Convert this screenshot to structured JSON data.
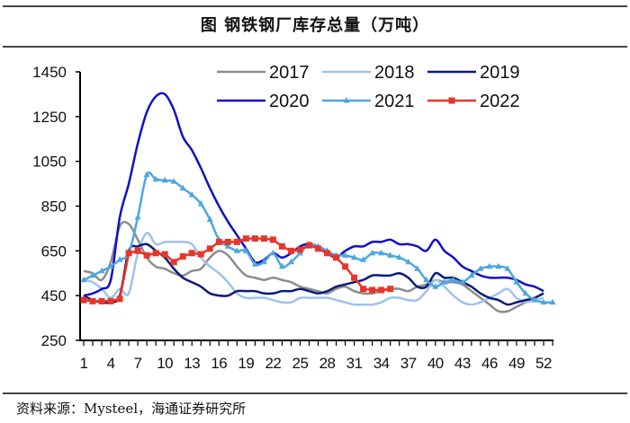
{
  "title": "图  钢铁钢厂库存总量（万吨）",
  "source": "资料来源：Mysteel，海通证券研究所",
  "chart_data": {
    "type": "line",
    "title": "图  钢铁钢厂库存总量（万吨）",
    "xlabel": "",
    "ylabel": "",
    "ylim": [
      250,
      1450
    ],
    "yticks": [
      250,
      450,
      650,
      850,
      1050,
      1250,
      1450
    ],
    "xlim": [
      1,
      53
    ],
    "xticks": [
      1,
      4,
      7,
      10,
      13,
      16,
      19,
      22,
      25,
      28,
      31,
      34,
      37,
      40,
      43,
      46,
      49,
      52
    ],
    "grid": false,
    "legend": "top-right",
    "series": [
      {
        "name": "2017",
        "color": "#8c8c8c",
        "marker": "none",
        "values": [
          560,
          550,
          520,
          600,
          760,
          770,
          700,
          620,
          580,
          570,
          550,
          540,
          560,
          570,
          620,
          650,
          630,
          580,
          540,
          530,
          520,
          530,
          520,
          510,
          490,
          480,
          470,
          460,
          480,
          490,
          470,
          460,
          460,
          470,
          480,
          480,
          470,
          490,
          500,
          520,
          510,
          510,
          500,
          470,
          440,
          410,
          380,
          380,
          400,
          420,
          440,
          460
        ]
      },
      {
        "name": "2018",
        "color": "#9dc3ec",
        "marker": "none",
        "values": [
          520,
          510,
          480,
          440,
          480,
          460,
          640,
          730,
          680,
          690,
          690,
          690,
          680,
          620,
          580,
          550,
          510,
          460,
          440,
          440,
          440,
          430,
          420,
          420,
          440,
          440,
          440,
          440,
          430,
          420,
          410,
          410,
          410,
          420,
          440,
          440,
          430,
          430,
          470,
          520,
          490,
          450,
          420,
          410,
          420,
          440,
          460,
          480,
          440,
          420,
          430,
          440
        ]
      },
      {
        "name": "2019",
        "color": "#0a1a7a",
        "marker": "none",
        "values": [
          450,
          430,
          420,
          420,
          450,
          650,
          670,
          680,
          650,
          620,
          570,
          530,
          510,
          490,
          460,
          450,
          450,
          470,
          470,
          470,
          460,
          460,
          470,
          470,
          480,
          470,
          460,
          470,
          490,
          500,
          510,
          520,
          540,
          540,
          540,
          550,
          530,
          490,
          490,
          550,
          530,
          530,
          510,
          490,
          460,
          440,
          430,
          410,
          420,
          430,
          440,
          460
        ]
      },
      {
        "name": "2020",
        "color": "#1010c8",
        "marker": "none",
        "values": [
          450,
          460,
          480,
          520,
          800,
          950,
          1130,
          1270,
          1340,
          1350,
          1280,
          1160,
          1100,
          1020,
          930,
          850,
          780,
          720,
          660,
          600,
          610,
          640,
          620,
          640,
          670,
          680,
          660,
          640,
          620,
          650,
          670,
          670,
          690,
          690,
          700,
          680,
          680,
          670,
          650,
          700,
          650,
          620,
          580,
          560,
          540,
          530,
          530,
          530,
          520,
          500,
          490,
          470
        ]
      },
      {
        "name": "2021",
        "color": "#4da6e0",
        "marker": "triangle",
        "values": [
          520,
          540,
          560,
          580,
          610,
          640,
          800,
          990,
          970,
          965,
          960,
          930,
          900,
          860,
          790,
          700,
          670,
          650,
          650,
          590,
          600,
          640,
          580,
          600,
          640,
          680,
          670,
          650,
          630,
          630,
          620,
          610,
          640,
          640,
          630,
          620,
          600,
          570,
          520,
          490,
          510,
          520,
          510,
          540,
          570,
          580,
          580,
          570,
          510,
          460,
          430,
          420,
          420
        ]
      },
      {
        "name": "2022",
        "color": "#e8352a",
        "marker": "square",
        "values": [
          430,
          425,
          425,
          425,
          435,
          640,
          650,
          630,
          640,
          635,
          600,
          625,
          640,
          635,
          660,
          690,
          690,
          690,
          705,
          705,
          705,
          700,
          670,
          650,
          655,
          675,
          660,
          640,
          620,
          580,
          530,
          480,
          475,
          475,
          480
        ]
      }
    ]
  }
}
